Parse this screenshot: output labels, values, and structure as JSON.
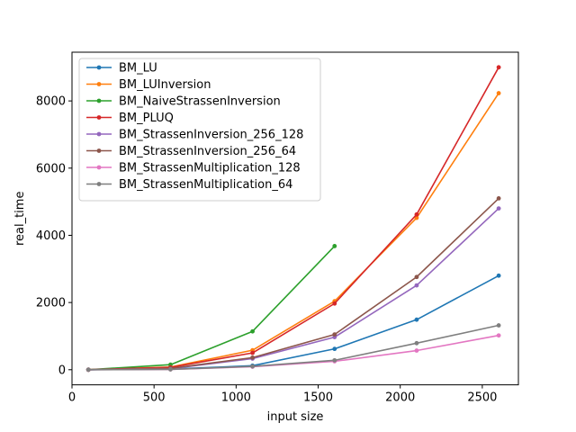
{
  "chart_data": {
    "type": "line",
    "xlabel": "input size",
    "ylabel": "real_time",
    "xlim": [
      0,
      2720
    ],
    "ylim": [
      -450,
      9450
    ],
    "xticks": [
      0,
      500,
      1000,
      1500,
      2000,
      2500
    ],
    "yticks": [
      0,
      2000,
      4000,
      6000,
      8000
    ],
    "grid": false,
    "legend_position": "upper-left",
    "series": [
      {
        "name": "BM_LU",
        "color": "#1f77b4",
        "x": [
          100,
          600,
          1100,
          1600,
          2100,
          2600
        ],
        "y": [
          0,
          20,
          120,
          620,
          1490,
          2800
        ]
      },
      {
        "name": "BM_LUInversion",
        "color": "#ff7f0e",
        "x": [
          100,
          600,
          1100,
          1600,
          2100,
          2600
        ],
        "y": [
          0,
          80,
          580,
          2040,
          4520,
          8230
        ]
      },
      {
        "name": "BM_NaiveStrassenInversion",
        "color": "#2ca02c",
        "x": [
          100,
          600,
          1100,
          1600
        ],
        "y": [
          0,
          150,
          1140,
          3680
        ]
      },
      {
        "name": "BM_PLUQ",
        "color": "#d62728",
        "x": [
          100,
          600,
          1100,
          1600,
          2100,
          2600
        ],
        "y": [
          0,
          70,
          500,
          1970,
          4620,
          9000
        ]
      },
      {
        "name": "BM_StrassenInversion_256_128",
        "color": "#9467bd",
        "x": [
          100,
          600,
          1100,
          1600,
          2100,
          2600
        ],
        "y": [
          0,
          30,
          330,
          970,
          2510,
          4800
        ]
      },
      {
        "name": "BM_StrassenInversion_256_64",
        "color": "#8c564b",
        "x": [
          100,
          600,
          1100,
          1600,
          2100,
          2600
        ],
        "y": [
          0,
          40,
          360,
          1050,
          2760,
          5100
        ]
      },
      {
        "name": "BM_StrassenMultiplication_128",
        "color": "#e377c2",
        "x": [
          100,
          600,
          1100,
          1600,
          2100,
          2600
        ],
        "y": [
          0,
          10,
          90,
          250,
          570,
          1020
        ]
      },
      {
        "name": "BM_StrassenMultiplication_64",
        "color": "#7f7f7f",
        "x": [
          100,
          600,
          1100,
          1600,
          2100,
          2600
        ],
        "y": [
          0,
          10,
          100,
          280,
          790,
          1320
        ]
      }
    ]
  }
}
